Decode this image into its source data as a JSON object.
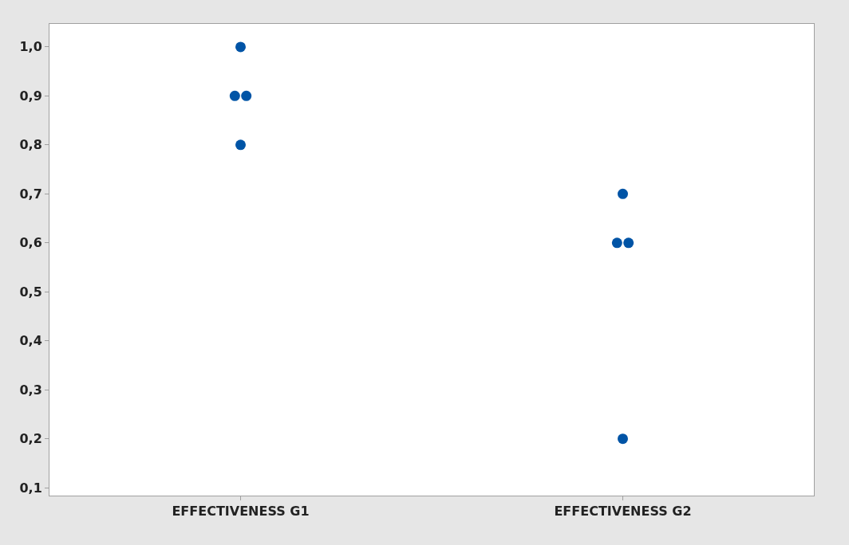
{
  "chart_data": {
    "type": "scatter",
    "categories": [
      "EFFECTIVENESS G1",
      "EFFECTIVENESS G2"
    ],
    "series": [
      {
        "color": "#0054a6",
        "x": [
          "EFFECTIVENESS G1",
          "EFFECTIVENESS G1",
          "EFFECTIVENESS G1",
          "EFFECTIVENESS G1",
          "EFFECTIVENESS G2",
          "EFFECTIVENESS G2",
          "EFFECTIVENESS G2",
          "EFFECTIVENESS G2"
        ],
        "values": [
          1.0,
          0.9,
          0.9,
          0.8,
          0.7,
          0.6,
          0.6,
          0.2
        ]
      }
    ],
    "ylim": [
      0.084,
      1.047
    ],
    "yticks": [
      {
        "value": 0.1,
        "label": "0,1"
      },
      {
        "value": 0.2,
        "label": "0,2"
      },
      {
        "value": 0.3,
        "label": "0,3"
      },
      {
        "value": 0.4,
        "label": "0,4"
      },
      {
        "value": 0.5,
        "label": "0,5"
      },
      {
        "value": 0.6,
        "label": "0,6"
      },
      {
        "value": 0.7,
        "label": "0,7"
      },
      {
        "value": 0.8,
        "label": "0,8"
      },
      {
        "value": 0.9,
        "label": "0,9"
      },
      {
        "value": 1.0,
        "label": "1,0"
      }
    ],
    "marker": "circle"
  }
}
